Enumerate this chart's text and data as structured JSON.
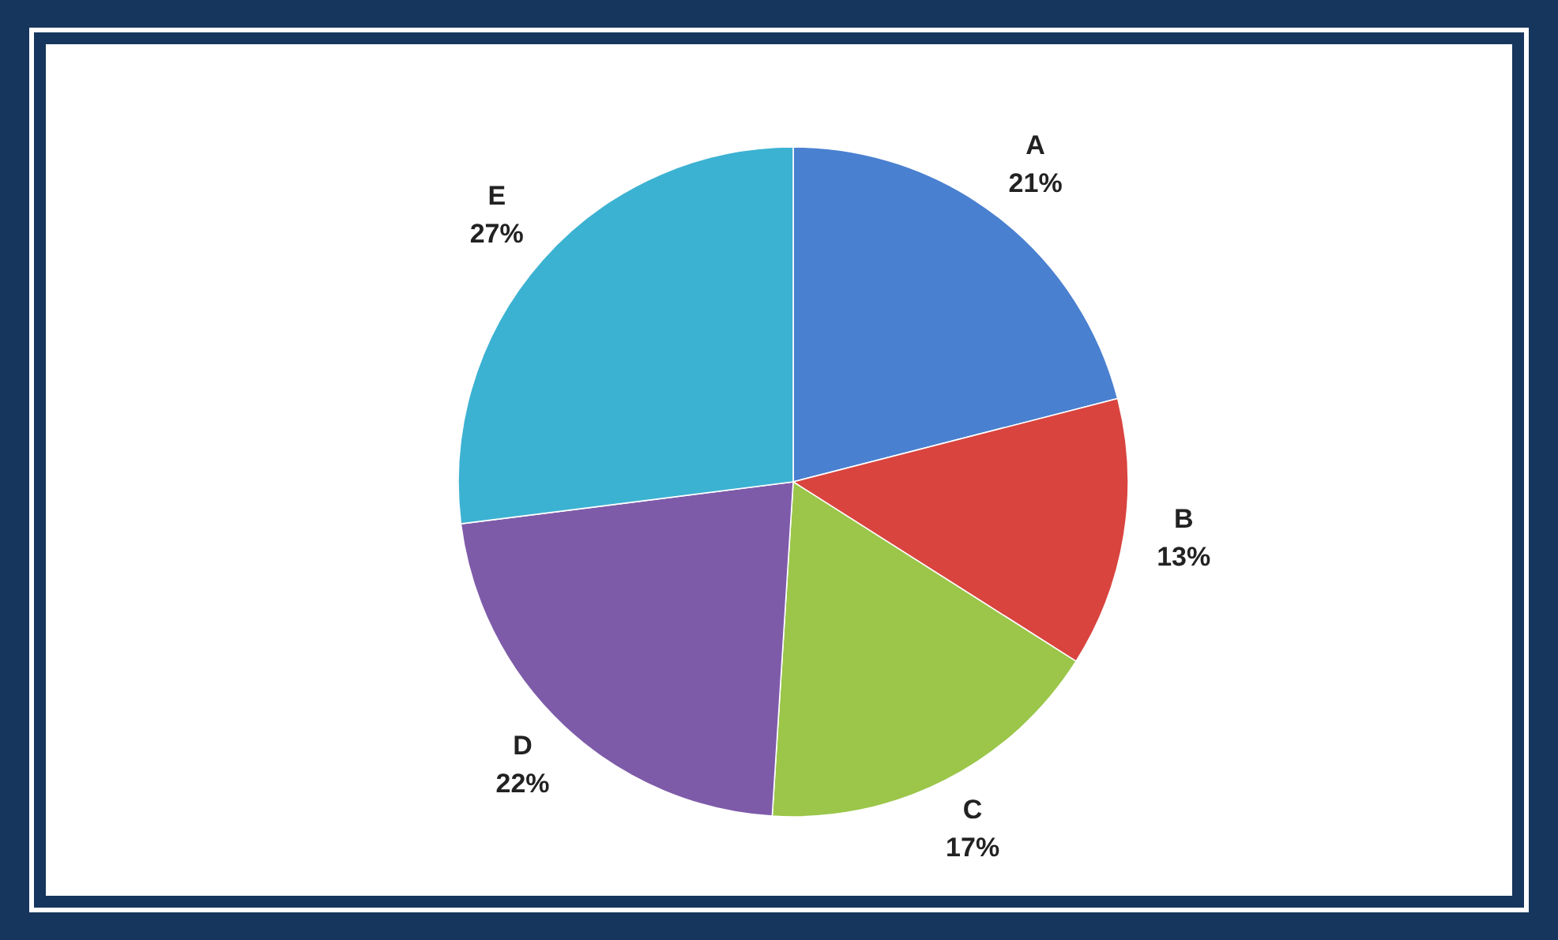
{
  "chart_data": {
    "type": "pie",
    "categories": [
      "A",
      "B",
      "C",
      "D",
      "E"
    ],
    "values": [
      21,
      13,
      17,
      22,
      27
    ],
    "colors": [
      "#4a80d0",
      "#d9443f",
      "#9bc64a",
      "#7e5ba9",
      "#3cb2d2"
    ],
    "value_labels": [
      "21%",
      "13%",
      "17%",
      "22%",
      "27%"
    ]
  }
}
